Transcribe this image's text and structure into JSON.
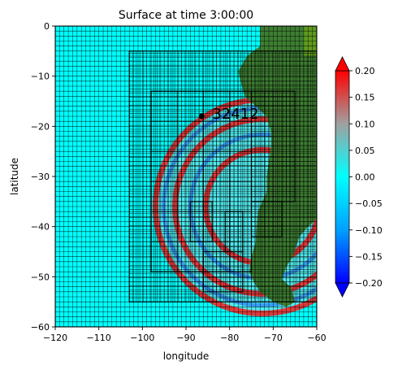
{
  "chart_data": {
    "type": "heatmap",
    "title": "Surface at time 3:00:00",
    "xlabel": "longitude",
    "ylabel": "latitude",
    "xlim": [
      -120,
      -60
    ],
    "ylim": [
      -60,
      0
    ],
    "x_ticks": [
      -120,
      -110,
      -100,
      -90,
      -80,
      -70,
      -60
    ],
    "x_tick_labels": [
      "−120",
      "−110",
      "−100",
      "−90",
      "−80",
      "−70",
      "−60"
    ],
    "y_ticks": [
      0,
      -10,
      -20,
      -30,
      -40,
      -50,
      -60
    ],
    "y_tick_labels": [
      "0",
      "−10",
      "−20",
      "−30",
      "−40",
      "−50",
      "−60"
    ],
    "colorbar": {
      "vmin": -0.2,
      "vmax": 0.2,
      "extend": "both",
      "ticks": [
        0.2,
        0.15,
        0.1,
        0.05,
        0.0,
        -0.05,
        -0.1,
        -0.15,
        -0.2
      ],
      "tick_labels": [
        "0.20",
        "0.15",
        "0.10",
        "0.05",
        "0.00",
        "−0.05",
        "−0.10",
        "−0.15",
        "−0.20"
      ],
      "colors": [
        "#0000ff",
        "#00a0ff",
        "#00ffff",
        "#a0a0a0",
        "#ff0000"
      ]
    },
    "gauge": {
      "label": "32412",
      "lon": -86.4,
      "lat": -18.0
    },
    "colors": {
      "water_flat": "#00ffff",
      "land": "#3d7e32",
      "land_light": "#5f9b1e",
      "wave_positive": "#ff1a1a",
      "wave_negative": "#2060ff",
      "gauge_marker": "#000000"
    },
    "amr_patches": [
      {
        "level": 1,
        "xlim": [
          -120,
          -60
        ],
        "ylim": [
          -60,
          0
        ],
        "cell_deg": 1.0
      },
      {
        "level": 2,
        "xlim": [
          -103,
          -60
        ],
        "ylim": [
          -55,
          -5
        ],
        "cell_deg": 0.8
      },
      {
        "level": 3,
        "xlim": [
          -98,
          -75
        ],
        "ylim": [
          -49,
          -13
        ],
        "cell_deg": 6.0
      },
      {
        "level": 3,
        "xlim": [
          -75,
          -65
        ],
        "ylim": [
          -35,
          -13
        ],
        "cell_deg": 1.0
      },
      {
        "level": 3,
        "xlim": [
          -75,
          -68
        ],
        "ylim": [
          -42,
          -35
        ],
        "cell_deg": 1.0
      },
      {
        "level": 3,
        "xlim": [
          -89,
          -84
        ],
        "ylim": [
          -43,
          -35
        ],
        "cell_deg": 1.0
      },
      {
        "level": 3,
        "xlim": [
          -81,
          -77
        ],
        "ylim": [
          -45,
          -37
        ],
        "cell_deg": 1.0
      },
      {
        "level": 3,
        "xlim": [
          -86,
          -77
        ],
        "ylim": [
          -53,
          -45
        ],
        "cell_deg": 1.0
      }
    ],
    "wave_front": {
      "center_lon": -72.5,
      "center_lat": -36,
      "rings": [
        {
          "radius_deg": 24.5,
          "sign": "positive"
        },
        {
          "radius_deg": 22.6,
          "sign": "negative"
        },
        {
          "radius_deg": 20.0,
          "sign": "positive"
        },
        {
          "radius_deg": 16.5,
          "sign": "negative"
        },
        {
          "radius_deg": 13.0,
          "sign": "positive"
        }
      ]
    }
  }
}
